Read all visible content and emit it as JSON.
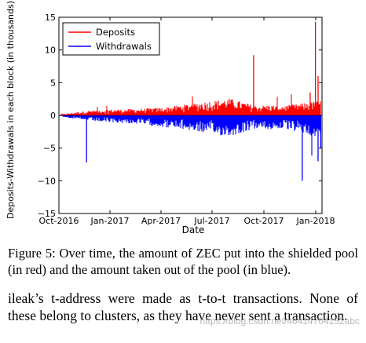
{
  "chart_data": {
    "type": "bar",
    "xlabel": "Date",
    "ylabel": "Deposits-Withdrawals in each block (in thousands)",
    "x_ticks": [
      "Oct-2016",
      "Jan-2017",
      "Apr-2017",
      "Jul-2017",
      "Oct-2017",
      "Jan-2018"
    ],
    "xlim": [
      "2016-10-28",
      "2018-01-25"
    ],
    "y_ticks": [
      "−15",
      "−10",
      "−5",
      "0",
      "5",
      "10",
      "15"
    ],
    "ylim": [
      -15,
      15
    ],
    "grid": false,
    "legend_position": "top-left",
    "series": [
      {
        "name": "Deposits",
        "color": "#ff0000",
        "typical_envelope": [
          [
            0.0,
            0.1
          ],
          [
            0.1,
            0.7
          ],
          [
            0.2,
            0.9
          ],
          [
            0.3,
            1.0
          ],
          [
            0.4,
            1.2
          ],
          [
            0.45,
            1.5
          ],
          [
            0.5,
            1.8
          ],
          [
            0.6,
            2.3
          ],
          [
            0.65,
            2.6
          ],
          [
            0.7,
            2.0
          ],
          [
            0.75,
            1.5
          ],
          [
            0.8,
            1.6
          ],
          [
            0.85,
            1.5
          ],
          [
            0.9,
            1.7
          ],
          [
            0.95,
            2.0
          ],
          [
            1.0,
            2.3
          ]
        ],
        "peaks": [
          [
            0.74,
            9.2
          ],
          [
            0.955,
            3.5
          ],
          [
            0.975,
            14.3
          ],
          [
            0.985,
            6.0
          ]
        ]
      },
      {
        "name": "Withdrawals",
        "color": "#0000ff",
        "typical_envelope": [
          [
            0.0,
            -0.1
          ],
          [
            0.1,
            -0.8
          ],
          [
            0.2,
            -1.1
          ],
          [
            0.3,
            -1.3
          ],
          [
            0.4,
            -1.8
          ],
          [
            0.5,
            -2.3
          ],
          [
            0.55,
            -2.6
          ],
          [
            0.6,
            -3.0
          ],
          [
            0.65,
            -3.2
          ],
          [
            0.7,
            -2.6
          ],
          [
            0.75,
            -2.0
          ],
          [
            0.8,
            -2.2
          ],
          [
            0.85,
            -2.0
          ],
          [
            0.9,
            -2.5
          ],
          [
            0.95,
            -3.0
          ],
          [
            1.0,
            -3.5
          ]
        ],
        "peaks": [
          [
            0.105,
            -7.2
          ],
          [
            0.925,
            -10.0
          ],
          [
            0.985,
            -7.0
          ],
          [
            0.995,
            -5.0
          ]
        ]
      }
    ]
  },
  "caption": "Figure 5: Over time, the amount of ZEC put into the shielded pool (in red) and the amount taken out of the pool (in blue).",
  "body_text": "ileak’s t-address were made as t-to-t transactions. None of these belong to clusters, as they have never sent a transaction.",
  "watermark": "https://blog.csdn.net/46414704152abc"
}
